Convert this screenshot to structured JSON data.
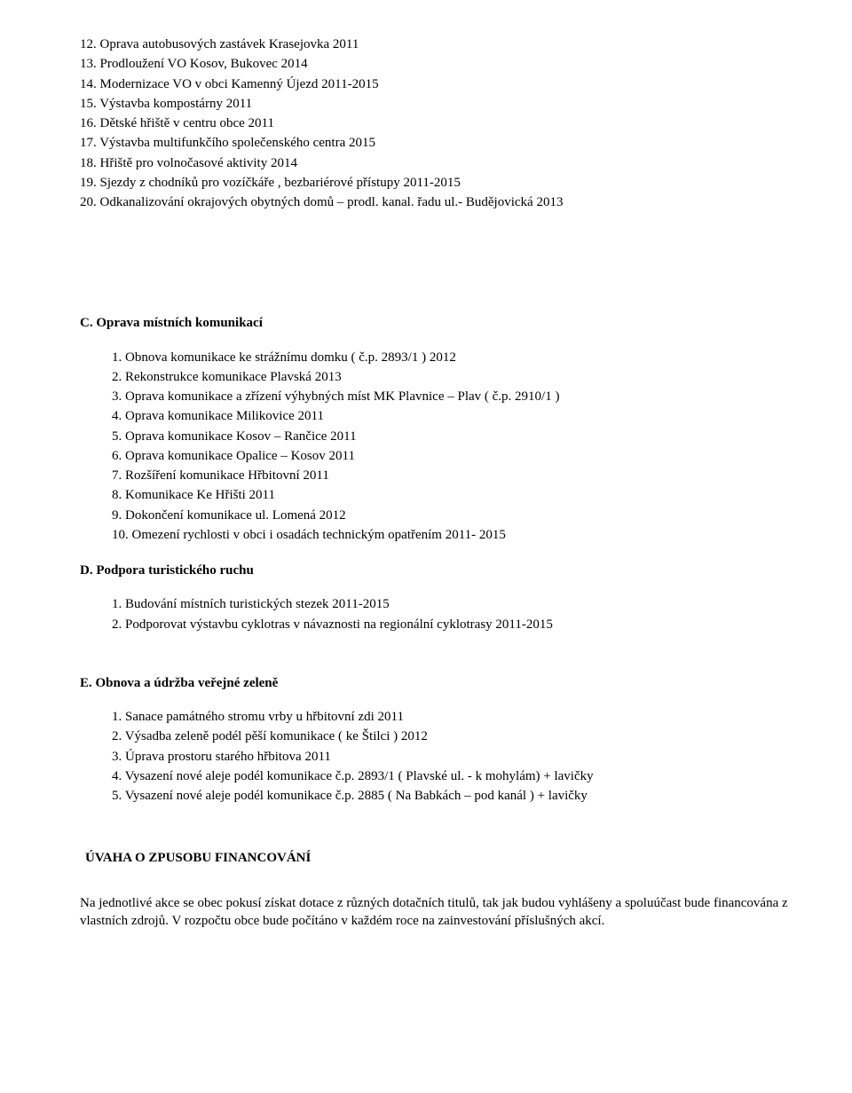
{
  "listA": [
    "12.  Oprava autobusových zastávek  Krasejovka   2011",
    "13.  Prodloužení VO  Kosov, Bukovec   2014",
    "14.  Modernizace VO v obci Kamenný Újezd 2011-2015",
    "15.  Výstavba kompostárny  2011",
    "16.   Dětské hřiště v centru obce   2011",
    "17.  Výstavba multifunkčího společenského centra   2015",
    "18.  Hřiště pro volnočasové aktivity  2014",
    "19.  Sjezdy z chodníků pro vozíčkáře , bezbariérové přístupy    2011-2015",
    "20.  Odkanalizování okrajových obytných domů – prodl. kanal. řadu ul.- Budějovická  2013"
  ],
  "sectionC": {
    "title": "C. Oprava místních komunikací",
    "items": [
      "1.  Obnova komunikace ke strážnímu domku  ( č.p. 2893/1 )  2012",
      "2.  Rekonstrukce komunikace Plavská  2013",
      "3.  Oprava komunikace a zřízení výhybných míst    MK Plavnice – Plav  ( č.p. 2910/1  )",
      "4.  Oprava komunikace Milikovice  2011",
      "5.  Oprava komunikace Kosov – Rančice 2011",
      "6.  Oprava komunikace Opalice – Kosov   2011",
      "7.  Rozšíření komunikace Hřbitovní  2011",
      "8.  Komunikace Ke Hřišti  2011",
      "9.  Dokončení komunikace ul. Lomená   2012",
      "10.  Omezení rychlosti v obci i osadách technickým opatřením 2011- 2015"
    ]
  },
  "sectionD": {
    "title": "D.  Podpora turistického ruchu",
    "items": [
      "1.  Budování místních turistických stezek 2011-2015",
      "2.  Podporovat výstavbu cyklotras v návaznosti na regionální cyklotrasy  2011-2015"
    ]
  },
  "sectionE": {
    "title": "E. Obnova a údržba veřejné zeleně",
    "items": [
      "1.  Sanace památného stromu vrby u hřbitovní zdi     2011",
      "2.  Výsadba zeleně podél pěší komunikace ( ke Štilci )  2012",
      "3.  Úprava prostoru starého hřbitova 2011",
      "4.  Vysazení nové aleje podél komunikace č.p. 2893/1 ( Plavské ul. - k mohylám) + lavičky",
      "5.  Vysazení nové aleje podél komunikace č.p.  2885 ( Na Babkách – pod kanál ) + lavičky"
    ]
  },
  "financing": {
    "title": "ÚVAHA  O ZPUSOBU  FINANCOVÁNÍ",
    "paragraph": "Na jednotlivé akce se obec pokusí získat dotace z různých dotačních titulů, tak jak budou vyhlášeny a spoluúčast bude financována z vlastních zdrojů. V rozpočtu obce bude počítáno v každém roce na zainvestování příslušných akcí."
  }
}
